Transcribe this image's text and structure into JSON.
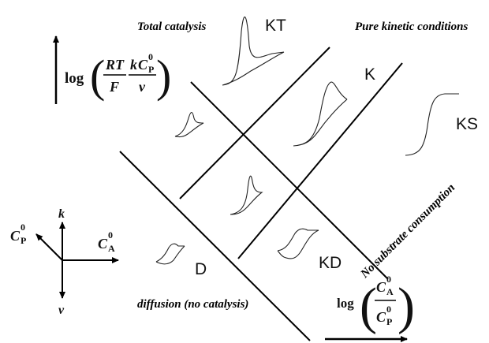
{
  "labels": {
    "total_catalysis": "Total catalysis",
    "pure_kinetic": "Pure kinetic conditions",
    "no_substrate": "No substrate consumption",
    "diffusion": "diffusion (no catalysis)"
  },
  "zones": {
    "kt": "KT",
    "k": "K",
    "ks": "KS",
    "kd": "KD",
    "d": "D"
  },
  "y_axis": {
    "log": "log",
    "rt": "RT",
    "f": "F",
    "k": "k",
    "c": "C",
    "c_sub": "P",
    "c_sup": "0",
    "v": "v"
  },
  "x_axis": {
    "log": "log",
    "num": "C",
    "num_sub": "A",
    "num_sup": "0",
    "den": "C",
    "den_sub": "P",
    "den_sup": "0"
  },
  "compass": {
    "k": "k",
    "v": "v",
    "cp": "C",
    "cp_sub": "P",
    "cp_sup": "0",
    "ca": "C",
    "ca_sub": "A",
    "ca_sup": "0"
  }
}
